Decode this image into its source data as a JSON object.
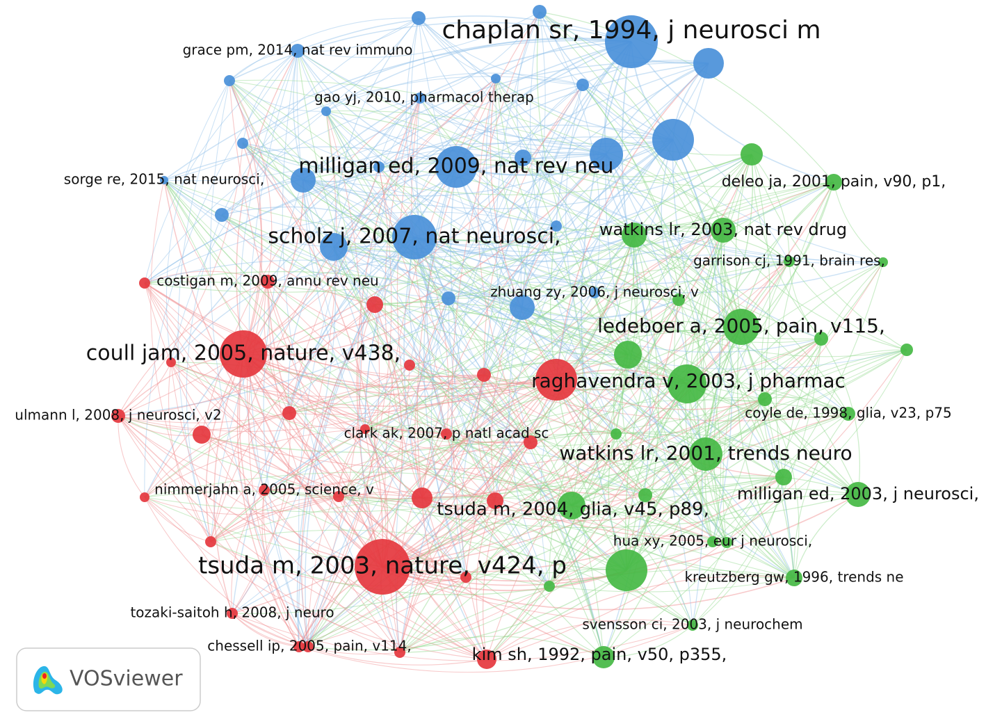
{
  "nodes": [
    {
      "label": "chaplan sr, 1994, j neurosci m"
    },
    {
      "label": "grace pm, 2014, nat rev immuno"
    },
    {
      "label": "gao yj, 2010, pharmacol therap"
    },
    {
      "label": "milligan ed, 2009, nat rev neu"
    },
    {
      "label": "sorge re, 2015, nat neurosci,"
    },
    {
      "label": "scholz j, 2007, nat neurosci,"
    },
    {
      "label": "zhuang zy, 2006, j neurosci, v"
    },
    {
      "label": "costigan m, 2009, annu rev neu"
    },
    {
      "label": "coull jam, 2005, nature, v438,"
    },
    {
      "label": "ulmann l, 2008, j neurosci, v2"
    },
    {
      "label": "clark ak, 2007, p natl acad sc"
    },
    {
      "label": "nimmerjahn a, 2005, science, v"
    },
    {
      "label": "tsuda m, 2003, nature, v424, p"
    },
    {
      "label": "tozaki-saitoh h, 2008, j neuro"
    },
    {
      "label": "chessell ip, 2005, pain, v114,"
    },
    {
      "label": "kim sh, 1992, pain, v50, p355,"
    },
    {
      "label": "tsuda m, 2004, glia, v45, p89,"
    },
    {
      "label": "raghavendra v, 2003, j pharmac"
    },
    {
      "label": "deleo ja, 2001, pain, v90, p1,"
    },
    {
      "label": "watkins lr, 2003, nat rev drug"
    },
    {
      "label": "garrison cj, 1991, brain res,"
    },
    {
      "label": "ledeboer a, 2005, pain, v115,"
    },
    {
      "label": "coyle de, 1998, glia, v23, p75"
    },
    {
      "label": "watkins lr, 2001, trends neuro"
    },
    {
      "label": "milligan ed, 2003, j neurosci,"
    },
    {
      "label": "hua xy, 2005, eur j neurosci,"
    },
    {
      "label": "kreutzberg gw, 1996, trends ne"
    },
    {
      "label": "svensson ci, 2003, j neurochem"
    }
  ],
  "logo": {
    "text": "VOSviewer"
  }
}
